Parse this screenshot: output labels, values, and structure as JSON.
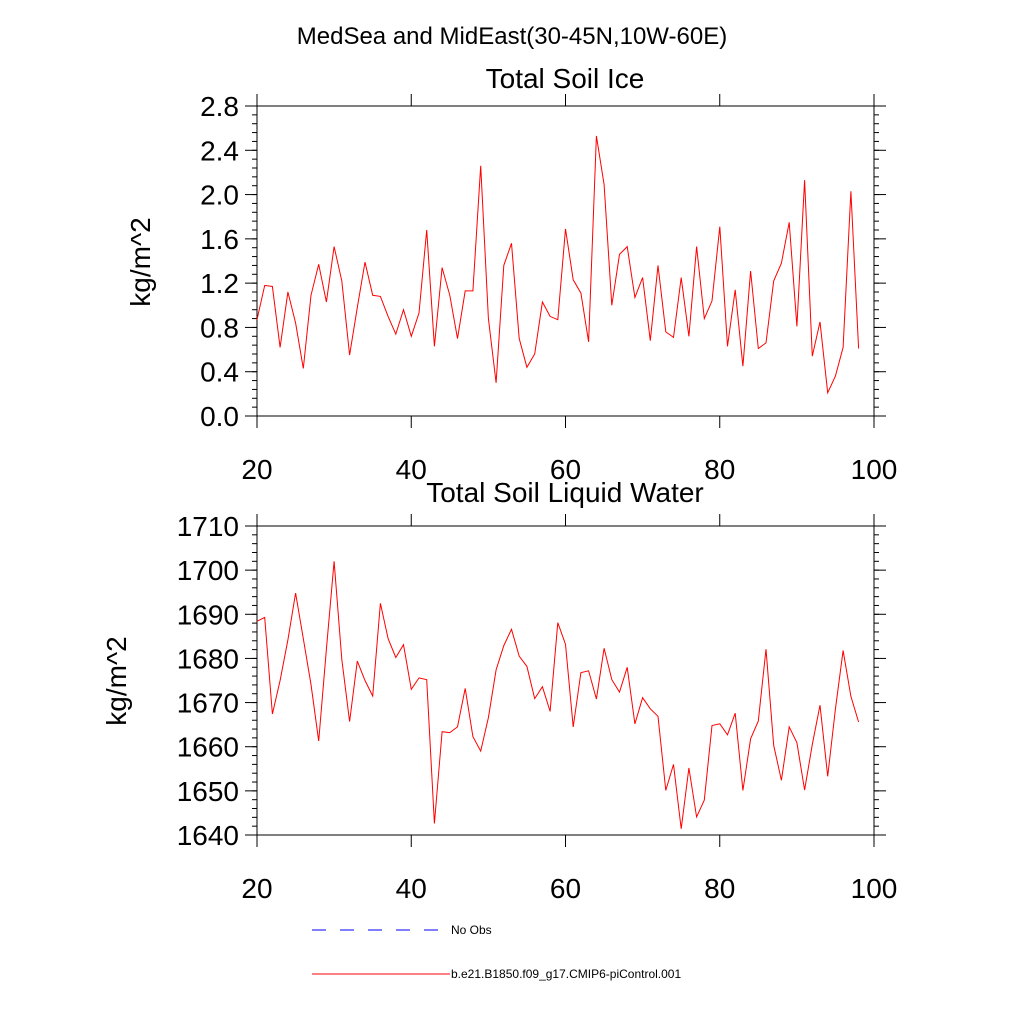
{
  "suptitle": "MedSea and MidEast(30-45N,10W-60E)",
  "chart_data": [
    {
      "type": "line",
      "title": "Total Soil Ice",
      "ylabel": "kg/m^2",
      "xlabel": "",
      "xlim": [
        20,
        100
      ],
      "ylim": [
        0.0,
        2.8
      ],
      "xticks": [
        20,
        40,
        60,
        80,
        100
      ],
      "yticks": [
        0.0,
        0.4,
        0.8,
        1.2,
        1.6,
        2.0,
        2.4,
        2.8
      ],
      "ytick_labels": [
        "0.0",
        "0.4",
        "0.8",
        "1.2",
        "1.6",
        "2.0",
        "2.4",
        "2.8"
      ],
      "yminor_step": 0.08,
      "color": "#ff0000",
      "x": [
        20,
        21,
        22,
        23,
        24,
        25,
        26,
        27,
        28,
        29,
        30,
        31,
        32,
        33,
        34,
        35,
        36,
        37,
        38,
        39,
        40,
        41,
        42,
        43,
        44,
        45,
        46,
        47,
        48,
        49,
        50,
        51,
        52,
        53,
        54,
        55,
        56,
        57,
        58,
        59,
        60,
        61,
        62,
        63,
        64,
        65,
        66,
        67,
        68,
        69,
        70,
        71,
        72,
        73,
        74,
        75,
        76,
        77,
        78,
        79,
        80,
        81,
        82,
        83,
        84,
        85,
        86,
        87,
        88,
        89,
        90,
        91,
        92,
        93,
        94,
        95,
        96,
        97,
        98
      ],
      "y": [
        0.87,
        1.18,
        1.17,
        0.62,
        1.12,
        0.84,
        0.43,
        1.09,
        1.37,
        1.03,
        1.53,
        1.22,
        0.55,
        0.98,
        1.39,
        1.09,
        1.08,
        0.9,
        0.74,
        0.96,
        0.72,
        0.93,
        1.68,
        0.63,
        1.34,
        1.09,
        0.7,
        1.13,
        1.13,
        2.26,
        0.88,
        0.3,
        1.36,
        1.56,
        0.7,
        0.44,
        0.56,
        1.03,
        0.9,
        0.87,
        1.69,
        1.23,
        1.11,
        0.67,
        2.53,
        2.09,
        1.0,
        1.46,
        1.53,
        1.07,
        1.25,
        0.68,
        1.36,
        0.76,
        0.71,
        1.25,
        0.72,
        1.53,
        0.88,
        1.04,
        1.71,
        0.63,
        1.14,
        0.45,
        1.31,
        0.61,
        0.66,
        1.22,
        1.38,
        1.75,
        0.81,
        2.13,
        0.54,
        0.85,
        0.21,
        0.36,
        0.62,
        2.03,
        0.61
      ]
    },
    {
      "type": "line",
      "title": "Total Soil Liquid Water",
      "ylabel": "kg/m^2",
      "xlabel": "",
      "xlim": [
        20,
        100
      ],
      "ylim": [
        1640,
        1710
      ],
      "xticks": [
        20,
        40,
        60,
        80,
        100
      ],
      "yticks": [
        1640,
        1650,
        1660,
        1670,
        1680,
        1690,
        1700,
        1710
      ],
      "ytick_labels": [
        "1640",
        "1650",
        "1660",
        "1670",
        "1680",
        "1690",
        "1700",
        "1710"
      ],
      "yminor_step": 2,
      "color": "#ff0000",
      "x": [
        20,
        21,
        22,
        23,
        24,
        25,
        26,
        27,
        28,
        29,
        30,
        31,
        32,
        33,
        34,
        35,
        36,
        37,
        38,
        39,
        40,
        41,
        42,
        43,
        44,
        45,
        46,
        47,
        48,
        49,
        50,
        51,
        52,
        53,
        54,
        55,
        56,
        57,
        58,
        59,
        60,
        61,
        62,
        63,
        64,
        65,
        66,
        67,
        68,
        69,
        70,
        71,
        72,
        73,
        74,
        75,
        76,
        77,
        78,
        79,
        80,
        81,
        82,
        83,
        84,
        85,
        86,
        87,
        88,
        89,
        90,
        91,
        92,
        93,
        94,
        95,
        96,
        97,
        98
      ],
      "y": [
        1688.4,
        1689.3,
        1667.4,
        1675.0,
        1684.2,
        1694.8,
        1684.5,
        1674.1,
        1661.3,
        1682.1,
        1702.0,
        1679.8,
        1665.7,
        1679.4,
        1675.0,
        1671.5,
        1692.5,
        1684.5,
        1680.2,
        1683.1,
        1673.0,
        1675.6,
        1675.2,
        1642.6,
        1663.4,
        1663.2,
        1664.5,
        1673.2,
        1662.3,
        1659.0,
        1666.6,
        1677.4,
        1682.9,
        1686.6,
        1680.5,
        1678.2,
        1670.9,
        1673.6,
        1668.0,
        1688.1,
        1683.2,
        1664.5,
        1676.8,
        1677.2,
        1670.8,
        1682.3,
        1675.2,
        1672.4,
        1678.0,
        1665.2,
        1671.1,
        1668.6,
        1666.9,
        1650.1,
        1656.0,
        1641.4,
        1655.2,
        1644.1,
        1647.9,
        1664.8,
        1665.2,
        1662.7,
        1667.6,
        1650.1,
        1661.8,
        1665.8,
        1682.1,
        1660.3,
        1652.4,
        1664.5,
        1660.9,
        1650.2,
        1660.5,
        1669.4,
        1653.3,
        1668.5,
        1681.8,
        1671.4,
        1665.6
      ]
    }
  ],
  "legend": {
    "items": [
      {
        "label": "No Obs",
        "color": "#0000ff",
        "dash": true
      },
      {
        "label": "b.e21.B1850.f09_g17.CMIP6-piControl.001",
        "color": "#ff0000",
        "dash": false
      }
    ]
  }
}
